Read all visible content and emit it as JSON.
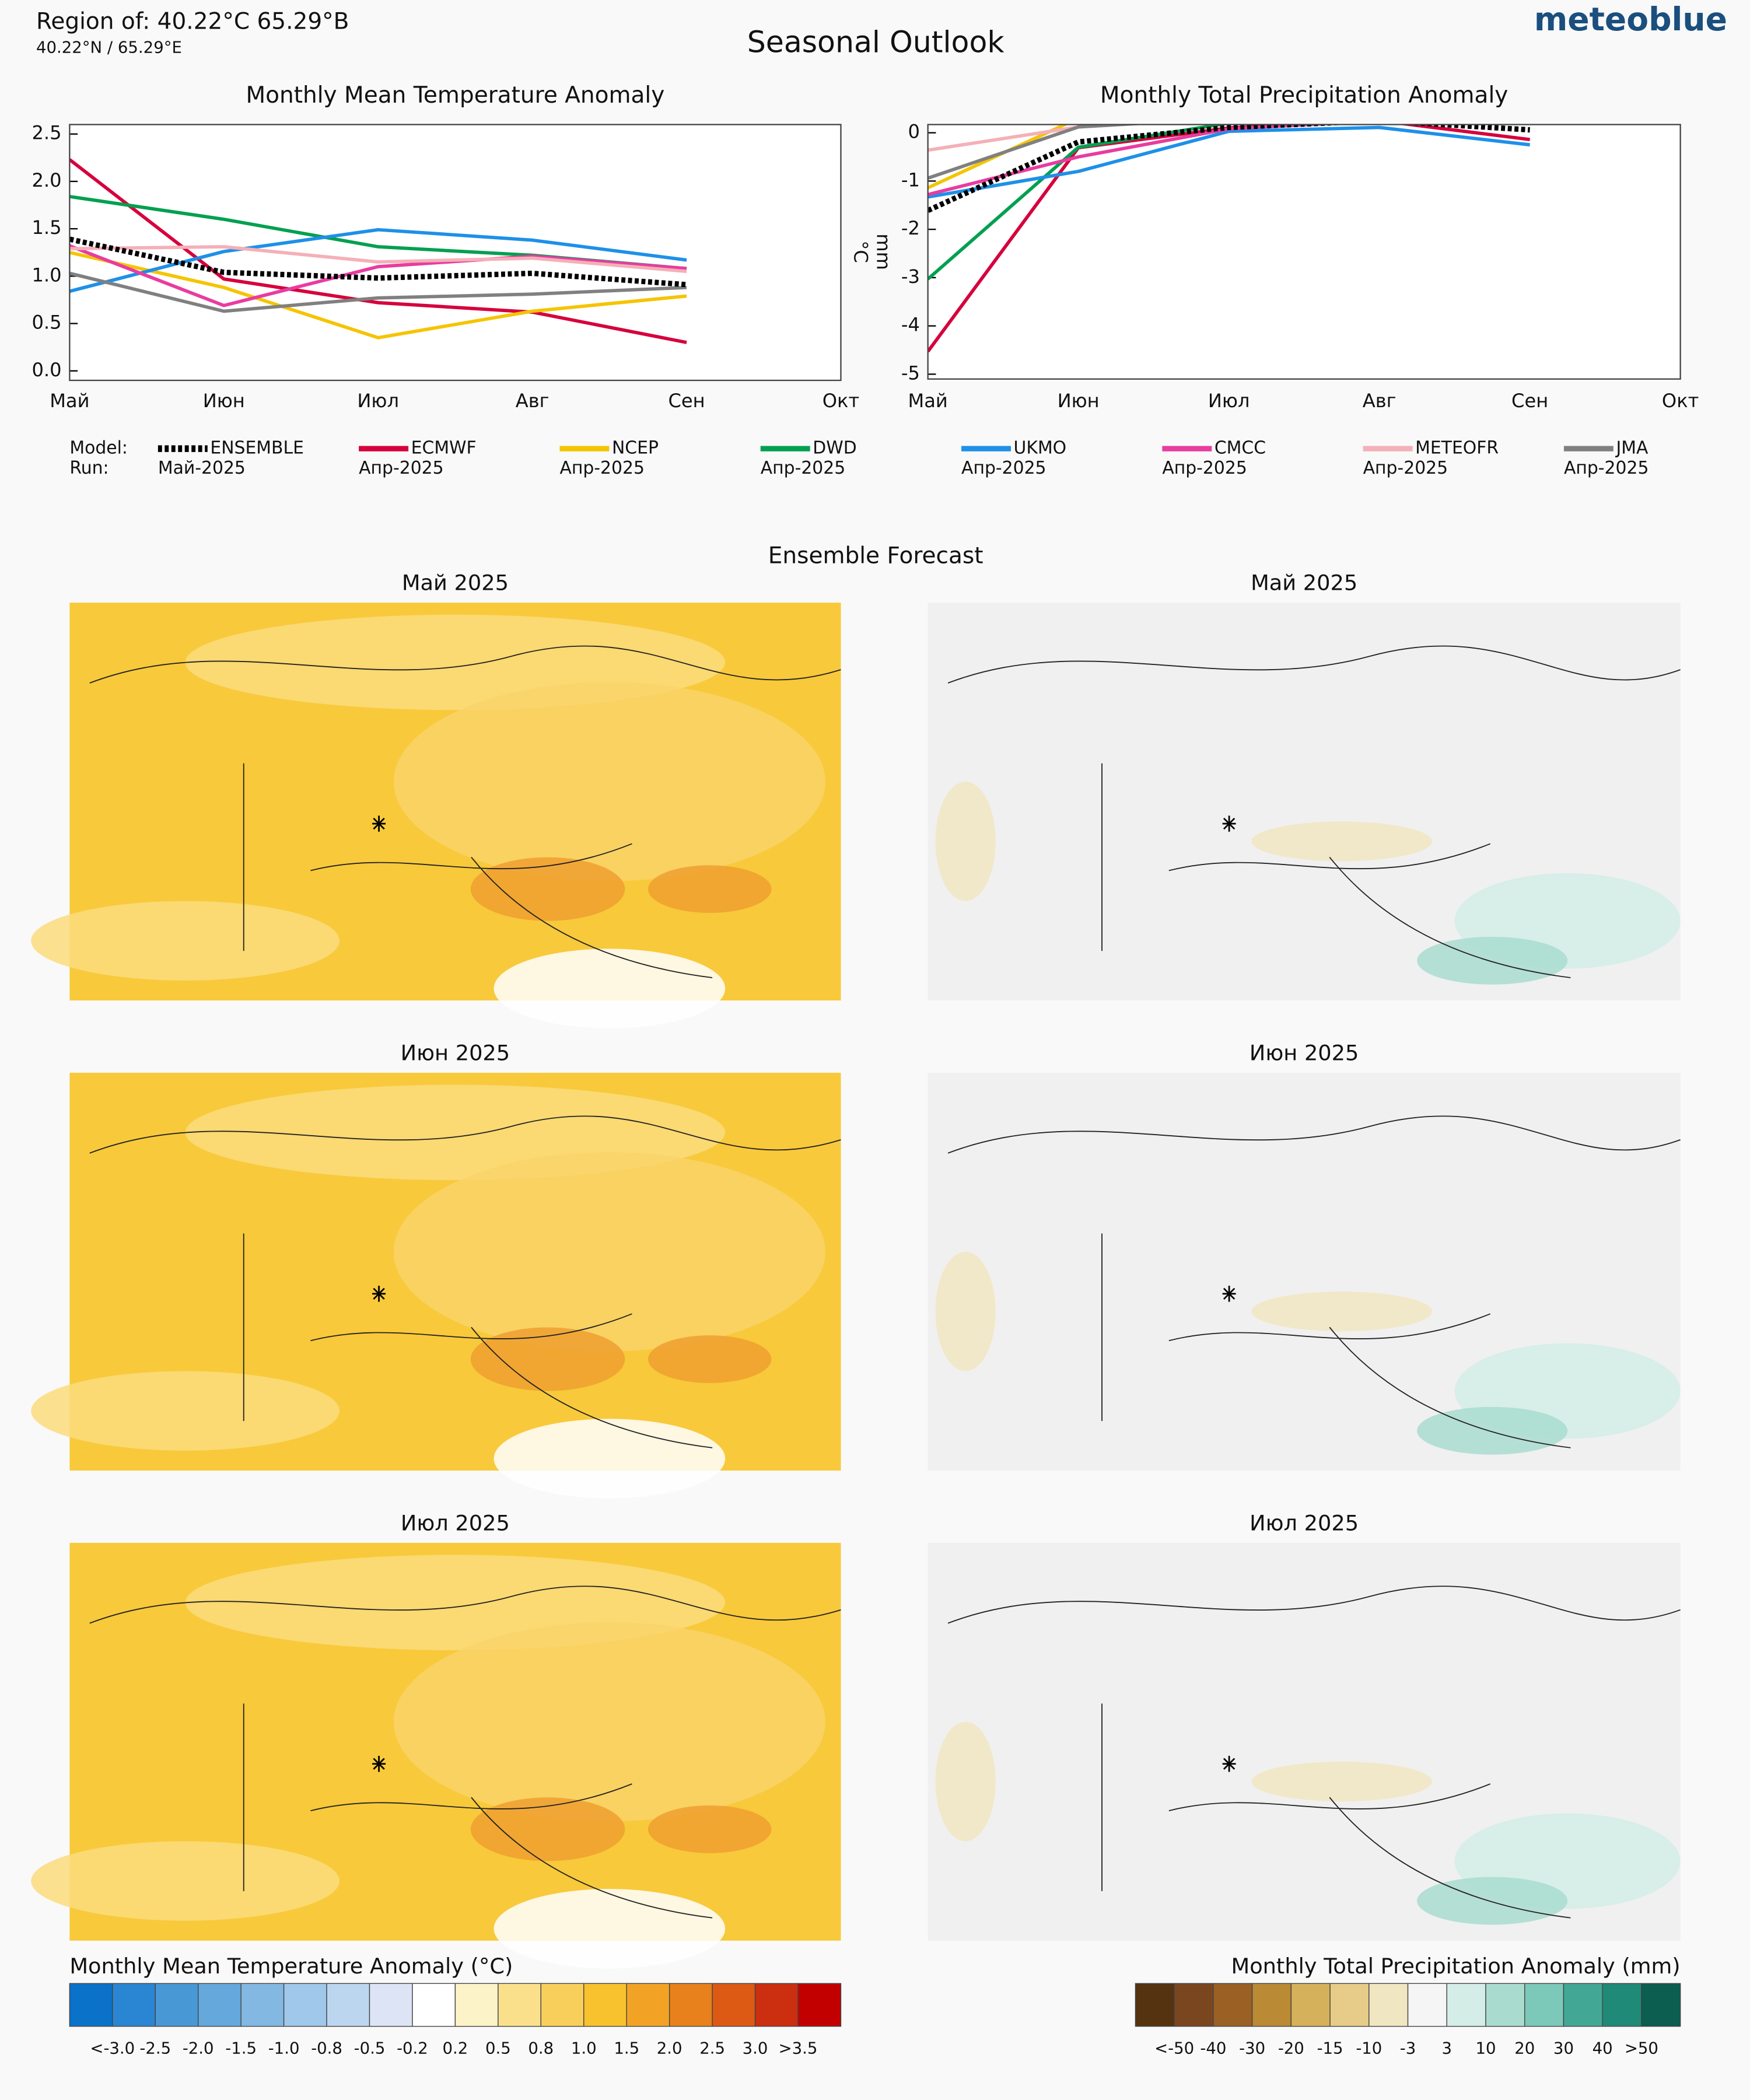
{
  "header": {
    "region": "Region of: 40.22°C 65.29°B",
    "coords": "40.22°N / 65.29°E",
    "title": "Seasonal Outlook",
    "logo": "meteoblue"
  },
  "chart_data": [
    {
      "type": "line",
      "title": "Monthly Mean Temperature Anomaly",
      "ylabel": "°C",
      "categories": [
        "Май",
        "Июн",
        "Июл",
        "Авг",
        "Сен",
        "Окт"
      ],
      "ylim": [
        -0.1,
        2.6
      ],
      "yticks": [
        {
          "value": 0,
          "label": "0.0"
        },
        0.5,
        {
          "value": 1,
          "label": "1.0"
        },
        1.5,
        {
          "value": 2,
          "label": "2.0"
        },
        2.5
      ],
      "series": [
        {
          "name": "ENSEMBLE",
          "run": "Май-2025",
          "color": "#000000",
          "style": "dotted",
          "values": [
            1.39,
            1.04,
            0.98,
            1.03,
            0.91,
            null
          ]
        },
        {
          "name": "ECMWF",
          "run": "Апр-2025",
          "color": "#d6003c",
          "values": [
            2.23,
            0.97,
            0.72,
            0.62,
            0.3,
            null
          ]
        },
        {
          "name": "NCEP",
          "run": "Апр-2025",
          "color": "#f5c400",
          "values": [
            1.25,
            0.88,
            0.35,
            0.63,
            0.79,
            null
          ]
        },
        {
          "name": "DWD",
          "run": "Апр-2025",
          "color": "#00a050",
          "values": [
            1.84,
            1.6,
            1.31,
            1.22,
            1.08,
            null
          ]
        },
        {
          "name": "UKMO",
          "run": "Апр-2025",
          "color": "#1e90e8",
          "values": [
            0.84,
            1.26,
            1.49,
            1.38,
            1.17,
            null
          ]
        },
        {
          "name": "CMCC",
          "run": "Апр-2025",
          "color": "#e83ca0",
          "values": [
            1.32,
            0.69,
            1.1,
            1.21,
            1.08,
            null
          ]
        },
        {
          "name": "METEOFR",
          "run": "Апр-2025",
          "color": "#f4b0b8",
          "values": [
            1.29,
            1.31,
            1.15,
            1.19,
            1.05,
            null
          ]
        },
        {
          "name": "JMA",
          "run": "Апр-2025",
          "color": "#808080",
          "values": [
            1.03,
            0.63,
            0.77,
            0.81,
            0.88,
            null
          ]
        }
      ]
    },
    {
      "type": "line",
      "title": "Monthly Total Precipitation Anomaly",
      "ylabel": "mm",
      "categories": [
        "Май",
        "Июн",
        "Июл",
        "Авг",
        "Сен",
        "Окт"
      ],
      "ylim": [
        -5.1,
        0.17
      ],
      "yticks": [
        0,
        -1,
        -2,
        -3,
        -4,
        -5
      ],
      "series": [
        {
          "color": "#000000",
          "style": "dotted",
          "values": [
            -1.61,
            -0.19,
            0.11,
            0.25,
            0.06,
            null
          ]
        },
        {
          "color": "#d6003c",
          "values": [
            -4.53,
            -0.31,
            0.1,
            0.25,
            -0.14,
            null
          ]
        },
        {
          "color": "#f5c400",
          "values": [
            -1.14,
            0.3,
            0.4,
            0.4,
            0.3,
            null
          ]
        },
        {
          "color": "#00a050",
          "values": [
            -3.03,
            -0.3,
            0.2,
            0.3,
            0.2,
            null
          ]
        },
        {
          "color": "#1e90e8",
          "values": [
            -1.33,
            -0.8,
            0.03,
            0.11,
            -0.25,
            null
          ]
        },
        {
          "color": "#e83ca0",
          "values": [
            -1.28,
            -0.5,
            0.08,
            0.25,
            0.2,
            null
          ]
        },
        {
          "color": "#f4b0b8",
          "values": [
            -0.36,
            0.12,
            0.3,
            0.3,
            0.3,
            null
          ]
        },
        {
          "color": "#808080",
          "values": [
            -0.94,
            0.12,
            0.3,
            0.3,
            0.3,
            null
          ]
        }
      ]
    }
  ],
  "legend": {
    "model_label": "Model:",
    "run_label": "Run:"
  },
  "ensemble": {
    "title": "Ensemble Forecast",
    "maps": [
      {
        "title": "Май 2025",
        "kind": "temperature"
      },
      {
        "title": "Май 2025",
        "kind": "precipitation"
      },
      {
        "title": "Июн 2025",
        "kind": "temperature"
      },
      {
        "title": "Июн 2025",
        "kind": "precipitation"
      },
      {
        "title": "Июл 2025",
        "kind": "temperature"
      },
      {
        "title": "Июл 2025",
        "kind": "precipitation"
      }
    ]
  },
  "colorbars": [
    {
      "title": "Monthly Mean Temperature Anomaly (°C)",
      "labels": [
        "<-3.0",
        "-2.5",
        "-2.0",
        "-1.5",
        "-1.0",
        "-0.8",
        "-0.5",
        "-0.2",
        "0.2",
        "0.5",
        "0.8",
        "1.0",
        "1.5",
        "2.0",
        "2.5",
        "3.0",
        ">3.5"
      ],
      "colors": [
        "#0a72c8",
        "#2a86d2",
        "#4898d6",
        "#64a8dc",
        "#82b8e2",
        "#a0c8ea",
        "#bcd6f0",
        "#dce4f6",
        "#ffffff",
        "#fdf3c8",
        "#fbe08c",
        "#f9cf5c",
        "#f7c22e",
        "#f2a326",
        "#e8801c",
        "#dc5a14",
        "#cc2e10",
        "#c20000"
      ]
    },
    {
      "title": "Monthly Total Precipitation Anomaly (mm)",
      "labels": [
        "<-50",
        "-40",
        "-30",
        "-20",
        "-15",
        "-10",
        "-3",
        "3",
        "10",
        "20",
        "30",
        "40",
        ">50"
      ],
      "colors": [
        "#553311",
        "#7a4620",
        "#9a6024",
        "#bb8a34",
        "#d6b15c",
        "#e6cc88",
        "#f1e6c2",
        "#f5f5f5",
        "#d4ede6",
        "#a9dccf",
        "#7cc8b9",
        "#43a796",
        "#1f8a78",
        "#0b5e50"
      ]
    }
  ]
}
